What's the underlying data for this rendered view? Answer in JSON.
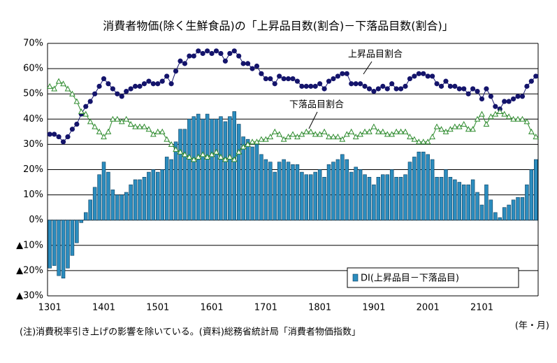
{
  "chart_data": {
    "type": "bar-line",
    "title": "消費者物価(除く生鮮食品)の「上昇品目数(割合)－下落品目数(割合)」",
    "note": "(注)消費税率引き上げの影響を除いている。(資料)総務省統計局「消費者物価指数」",
    "xlabel": "(年・月)",
    "categories": [
      "1301",
      null,
      null,
      null,
      null,
      null,
      null,
      null,
      null,
      null,
      null,
      null,
      "1401",
      null,
      null,
      null,
      null,
      null,
      null,
      null,
      null,
      null,
      null,
      null,
      "1501",
      null,
      null,
      null,
      null,
      null,
      null,
      null,
      null,
      null,
      null,
      null,
      "1601",
      null,
      null,
      null,
      null,
      null,
      null,
      null,
      null,
      null,
      null,
      null,
      "1701",
      null,
      null,
      null,
      null,
      null,
      null,
      null,
      null,
      null,
      null,
      null,
      "1801",
      null,
      null,
      null,
      null,
      null,
      null,
      null,
      null,
      null,
      null,
      null,
      "1901",
      null,
      null,
      null,
      null,
      null,
      null,
      null,
      null,
      null,
      null,
      null,
      "2001",
      null,
      null,
      null,
      null,
      null,
      null,
      null,
      null,
      null,
      null,
      null,
      "2101",
      null,
      null,
      null,
      null,
      null,
      null,
      null,
      null,
      null,
      null,
      null,
      null
    ],
    "series": [
      {
        "name": "DI(上昇品目－下落品目)",
        "type": "bar",
        "color": "#2b8cbe",
        "values": [
          -19,
          -18,
          -22,
          -23,
          -19,
          -14,
          -9,
          -1,
          3,
          8,
          13,
          18,
          23,
          19,
          12,
          10,
          10,
          11,
          14,
          16,
          16,
          17,
          19,
          20,
          19,
          20,
          25,
          24,
          31,
          36,
          36,
          40,
          41,
          42,
          40,
          42,
          40,
          40,
          41,
          39,
          41,
          43,
          38,
          33,
          32,
          29,
          30,
          26,
          24,
          23,
          19,
          23,
          24,
          23,
          22,
          22,
          19,
          18,
          18,
          19,
          20,
          17,
          22,
          23,
          24,
          26,
          24,
          19,
          21,
          20,
          18,
          17,
          14,
          17,
          18,
          18,
          20,
          17,
          17,
          18,
          23,
          25,
          27,
          27,
          26,
          24,
          17,
          17,
          20,
          17,
          16,
          15,
          14,
          14,
          16,
          11,
          6,
          14,
          8,
          3,
          1,
          5,
          6,
          8,
          9,
          9,
          14,
          20,
          24
        ]
      },
      {
        "name": "上昇品目割合",
        "type": "line",
        "color": "#14146b",
        "values": [
          34,
          34,
          33,
          31,
          33,
          36,
          38,
          42,
          45,
          47,
          50,
          53,
          56,
          54,
          52,
          50,
          49,
          51,
          52,
          53,
          53,
          54,
          55,
          54,
          54,
          55,
          57,
          54,
          59,
          63,
          62,
          65,
          65,
          67,
          66,
          67,
          66,
          67,
          66,
          63,
          66,
          67,
          65,
          62,
          62,
          60,
          61,
          58,
          56,
          56,
          54,
          57,
          56,
          56,
          56,
          55,
          53,
          53,
          53,
          53,
          54,
          52,
          55,
          56,
          57,
          58,
          58,
          54,
          54,
          54,
          53,
          52,
          51,
          52,
          53,
          52,
          54,
          52,
          52,
          53,
          56,
          57,
          58,
          58,
          57,
          57,
          54,
          53,
          55,
          53,
          53,
          52,
          52,
          50,
          52,
          51,
          48,
          52,
          49,
          45,
          44,
          47,
          47,
          48,
          49,
          49,
          53,
          55,
          57
        ]
      },
      {
        "name": "下落品目割合",
        "type": "line",
        "color": "#2e8b2e",
        "values": [
          53,
          52,
          55,
          54,
          52,
          50,
          47,
          43,
          42,
          39,
          37,
          35,
          33,
          35,
          40,
          40,
          39,
          40,
          38,
          37,
          37,
          37,
          36,
          34,
          35,
          35,
          32,
          30,
          28,
          27,
          26,
          25,
          24,
          25,
          26,
          25,
          26,
          27,
          25,
          24,
          25,
          24,
          27,
          29,
          30,
          31,
          31,
          32,
          32,
          33,
          35,
          34,
          32,
          33,
          34,
          33,
          34,
          35,
          35,
          34,
          34,
          35,
          33,
          33,
          33,
          32,
          34,
          35,
          33,
          34,
          35,
          35,
          37,
          35,
          35,
          34,
          34,
          35,
          35,
          35,
          33,
          32,
          31,
          31,
          31,
          33,
          37,
          36,
          35,
          36,
          37,
          37,
          38,
          36,
          36,
          40,
          42,
          38,
          41,
          42,
          43,
          42,
          41,
          40,
          40,
          40,
          39,
          35,
          33
        ]
      }
    ],
    "ylim": [
      -30,
      70
    ],
    "yticks": [
      {
        "value": -30,
        "label": "▲30%"
      },
      {
        "value": -20,
        "label": "▲20%"
      },
      {
        "value": -10,
        "label": "▲10%"
      },
      {
        "value": 0,
        "label": "0%"
      },
      {
        "value": 10,
        "label": "10%"
      },
      {
        "value": 20,
        "label": "20%"
      },
      {
        "value": 30,
        "label": "30%"
      },
      {
        "value": 40,
        "label": "40%"
      },
      {
        "value": 50,
        "label": "50%"
      },
      {
        "value": 60,
        "label": "60%"
      },
      {
        "value": 70,
        "label": "70%"
      }
    ],
    "grid": true
  }
}
